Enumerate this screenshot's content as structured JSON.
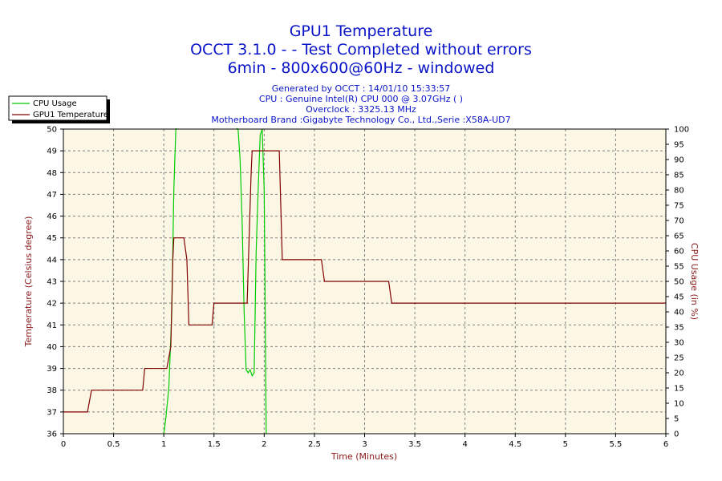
{
  "chart_data": {
    "type": "line",
    "title_lines": [
      "GPU1 Temperature",
      "OCCT 3.1.0 -  - Test Completed without errors",
      "6min - 800x600@60Hz - windowed"
    ],
    "subtitle_lines": [
      "Generated by OCCT : 14/01/10 15:33:57",
      "CPU : Genuine Intel(R) CPU 000 @ 3.07GHz (  )",
      "Overclock : 3325.13 MHz",
      "Motherboard Brand :Gigabyte Technology Co., Ltd.,Serie :X58A-UD7"
    ],
    "xlabel": "Time (Minutes)",
    "ylabel_left": "Temperature (Celsius degree)",
    "ylabel_right": "CPU Usage (in %)",
    "xlim": [
      0,
      6
    ],
    "ylim_left": [
      36,
      50
    ],
    "ylim_right": [
      0,
      100
    ],
    "x_ticks": [
      "0",
      "0.5",
      "1",
      "1.5",
      "2",
      "2.5",
      "3",
      "3.5",
      "4",
      "4.5",
      "5",
      "5.5",
      "6"
    ],
    "y_left_ticks": [
      "36",
      "37",
      "38",
      "39",
      "40",
      "41",
      "42",
      "43",
      "44",
      "45",
      "46",
      "47",
      "48",
      "49",
      "50"
    ],
    "y_right_ticks": [
      "0",
      "5",
      "10",
      "15",
      "20",
      "25",
      "30",
      "35",
      "40",
      "45",
      "50",
      "55",
      "60",
      "65",
      "70",
      "75",
      "80",
      "85",
      "90",
      "95",
      "100"
    ],
    "grid": true,
    "legend_position": "top-left",
    "series": [
      {
        "name": "CPU Usage",
        "axis": "right",
        "color": "#00cc00",
        "x": [
          1.0,
          1.02,
          1.05,
          1.08,
          1.1,
          1.12,
          1.14,
          1.2,
          1.3,
          1.5,
          1.6,
          1.7,
          1.74,
          1.76,
          1.78,
          1.8,
          1.82,
          1.84,
          1.86,
          1.88,
          1.9,
          1.92,
          1.94,
          1.96,
          1.98,
          2.0,
          2.01,
          2.02
        ],
        "y": [
          0,
          5,
          15,
          40,
          80,
          100,
          101,
          101,
          101,
          101,
          101,
          101,
          100,
          90,
          70,
          40,
          21,
          20,
          21,
          19,
          20,
          60,
          80,
          98,
          100,
          80,
          40,
          0
        ]
      },
      {
        "name": "GPU1 Temperature",
        "axis": "left",
        "color": "#800000",
        "x": [
          0,
          0.24,
          0.28,
          0.79,
          0.81,
          1.03,
          1.07,
          1.09,
          1.1,
          1.2,
          1.23,
          1.25,
          1.48,
          1.5,
          1.83,
          1.87,
          1.88,
          2.15,
          2.18,
          2.57,
          2.6,
          3.24,
          3.27,
          6.0
        ],
        "y": [
          37,
          37,
          38,
          38,
          39,
          39,
          40,
          44,
          45,
          45,
          44,
          41,
          41,
          42,
          42,
          48,
          49,
          49,
          44,
          44,
          43,
          43,
          42,
          42
        ]
      }
    ]
  }
}
